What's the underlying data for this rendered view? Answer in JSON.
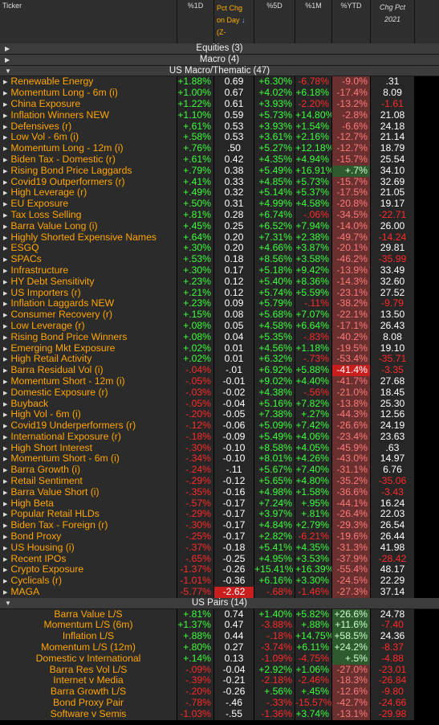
{
  "header": {
    "ticker": "Ticker",
    "d1": "%1D",
    "pct_chg": [
      "Pct Chg",
      "on Day",
      "(Z-"
    ],
    "sort_arrow": "↓",
    "d5": "%5D",
    "m1": "%1M",
    "ytd": "%YTD",
    "chg_pct": [
      "Chg Pct",
      "2021"
    ]
  },
  "groups": {
    "equities": "Equities (3)",
    "macro": "Macro (4)",
    "us_macro": "US Macro/Thematic (47)",
    "us_pairs": "US Pairs (14)"
  },
  "us_macro_rows": [
    {
      "name": "Renewable Energy",
      "d1": "+1.88%",
      "z": "0.69",
      "d5": "+6.30%",
      "m1": "-6.78%",
      "ytd": "-9.0%",
      "chg": ".31"
    },
    {
      "name": "Momentum Long - 6m (i)",
      "d1": "+1.00%",
      "z": "0.67",
      "d5": "+4.02%",
      "m1": "+6.18%",
      "ytd": "-17.4%",
      "chg": "8.09"
    },
    {
      "name": "China Exposure",
      "d1": "+1.22%",
      "z": "0.61",
      "d5": "+3.93%",
      "m1": "-2.20%",
      "ytd": "-13.2%",
      "chg": "-1.61"
    },
    {
      "name": "Inflation Winners NEW",
      "d1": "+1.10%",
      "z": "0.59",
      "d5": "+5.73%",
      "m1": "+14.80%",
      "ytd": "-2.8%",
      "chg": "21.08"
    },
    {
      "name": "Defensives (r)",
      "d1": "+.61%",
      "z": "0.53",
      "d5": "+3.93%",
      "m1": "+1.54%",
      "ytd": "-6.6%",
      "chg": "24.18"
    },
    {
      "name": "Low Vol - 6m (i)",
      "d1": "+.58%",
      "z": "0.53",
      "d5": "+3.61%",
      "m1": "+2.16%",
      "ytd": "-12.7%",
      "chg": "21.14"
    },
    {
      "name": "Momentum Long - 12m (i)",
      "d1": "+.76%",
      "z": ".50",
      "d5": "+5.27%",
      "m1": "+12.18%",
      "ytd": "-12.7%",
      "chg": "18.79"
    },
    {
      "name": "Biden Tax - Domestic (r)",
      "d1": "+.61%",
      "z": "0.42",
      "d5": "+4.35%",
      "m1": "+4.94%",
      "ytd": "-15.7%",
      "chg": "25.54"
    },
    {
      "name": "Rising Bond Price Laggards",
      "d1": "+.79%",
      "z": "0.38",
      "d5": "+5.49%",
      "m1": "+16.91%",
      "ytd": "+.7%",
      "chg": "34.10"
    },
    {
      "name": "Covid19 Outperformers (r)",
      "d1": "+.41%",
      "z": "0.33",
      "d5": "+4.85%",
      "m1": "+5.73%",
      "ytd": "-15.7%",
      "chg": "32.69"
    },
    {
      "name": "High Leverage (r)",
      "d1": "+.49%",
      "z": "0.32",
      "d5": "+5.14%",
      "m1": "+5.37%",
      "ytd": "-17.5%",
      "chg": "21.05"
    },
    {
      "name": "EU Exposure",
      "d1": "+.50%",
      "z": "0.31",
      "d5": "+4.99%",
      "m1": "+4.58%",
      "ytd": "-20.8%",
      "chg": "19.17"
    },
    {
      "name": "Tax Loss Selling",
      "d1": "+.81%",
      "z": "0.28",
      "d5": "+6.74%",
      "m1": "-.06%",
      "ytd": "-34.5%",
      "chg": "-22.71"
    },
    {
      "name": "Barra Value Long (i)",
      "d1": "+.45%",
      "z": "0.25",
      "d5": "+6.52%",
      "m1": "+7.94%",
      "ytd": "-14.0%",
      "chg": "26.00"
    },
    {
      "name": "Highly Shorted Expensive Names",
      "d1": "+.64%",
      "z": "0.20",
      "d5": "+7.31%",
      "m1": "+2.38%",
      "ytd": "-49.7%",
      "chg": "-14.24"
    },
    {
      "name": "ESGQ",
      "d1": "+.30%",
      "z": "0.20",
      "d5": "+4.66%",
      "m1": "+3.87%",
      "ytd": "-20.1%",
      "chg": "29.81"
    },
    {
      "name": "SPACs",
      "d1": "+.53%",
      "z": "0.18",
      "d5": "+8.56%",
      "m1": "+3.58%",
      "ytd": "-46.2%",
      "chg": "-35.99"
    },
    {
      "name": "Infrastructure",
      "d1": "+.30%",
      "z": "0.17",
      "d5": "+5.18%",
      "m1": "+9.42%",
      "ytd": "-13.9%",
      "chg": "33.49"
    },
    {
      "name": "HY Debt Sensitivity",
      "d1": "+.23%",
      "z": "0.12",
      "d5": "+5.40%",
      "m1": "+8.36%",
      "ytd": "-14.3%",
      "chg": "32.60"
    },
    {
      "name": "US Importers (r)",
      "d1": "+.21%",
      "z": "0.12",
      "d5": "+5.74%",
      "m1": "+5.59%",
      "ytd": "-23.1%",
      "chg": "27.52"
    },
    {
      "name": "Inflation Laggards NEW",
      "d1": "+.23%",
      "z": "0.09",
      "d5": "+5.79%",
      "m1": "-.11%",
      "ytd": "-38.2%",
      "chg": "-9.79"
    },
    {
      "name": "Consumer Recovery (r)",
      "d1": "+.15%",
      "z": "0.08",
      "d5": "+5.68%",
      "m1": "+7.07%",
      "ytd": "-22.1%",
      "chg": "13.50"
    },
    {
      "name": "Low Leverage (r)",
      "d1": "+.08%",
      "z": "0.05",
      "d5": "+4.58%",
      "m1": "+6.64%",
      "ytd": "-17.1%",
      "chg": "26.43"
    },
    {
      "name": "Rising Bond Price Winners",
      "d1": "+.08%",
      "z": "0.04",
      "d5": "+5.35%",
      "m1": "-.83%",
      "ytd": "-40.2%",
      "chg": "8.08"
    },
    {
      "name": "Emerging Mkt Exposure",
      "d1": "+.02%",
      "z": "0.01",
      "d5": "+4.56%",
      "m1": "+1.18%",
      "ytd": "-19.5%",
      "chg": "19.10"
    },
    {
      "name": "High Retail Activity",
      "d1": "+.02%",
      "z": "0.01",
      "d5": "+6.32%",
      "m1": "-.73%",
      "ytd": "-53.4%",
      "chg": "-35.71"
    },
    {
      "name": "Barra Residual Vol (i)",
      "d1": "-.04%",
      "z": "-.01",
      "d5": "+6.92%",
      "m1": "+5.88%",
      "ytd": "-41.4%",
      "chg": "-3.35",
      "hl": true
    },
    {
      "name": "Momentum Short - 12m (i)",
      "d1": "-.05%",
      "z": "-0.01",
      "d5": "+9.02%",
      "m1": "+4.40%",
      "ytd": "-41.7%",
      "chg": "27.68"
    },
    {
      "name": "Domestic Exposure (r)",
      "d1": "-.03%",
      "z": "-0.02",
      "d5": "+4.38%",
      "m1": "-.56%",
      "ytd": "-21.0%",
      "chg": "18.45"
    },
    {
      "name": "Buyback",
      "d1": "-.05%",
      "z": "-0.04",
      "d5": "+5.16%",
      "m1": "+7.82%",
      "ytd": "-13.8%",
      "chg": "25.30"
    },
    {
      "name": "High Vol - 6m (i)",
      "d1": "-.20%",
      "z": "-0.05",
      "d5": "+7.38%",
      "m1": "+.27%",
      "ytd": "-44.3%",
      "chg": "12.56"
    },
    {
      "name": "Covid19 Underperformers (r)",
      "d1": "-.12%",
      "z": "-0.06",
      "d5": "+5.09%",
      "m1": "+7.42%",
      "ytd": "-26.6%",
      "chg": "24.19"
    },
    {
      "name": "International Exposure (r)",
      "d1": "-.18%",
      "z": "-0.09",
      "d5": "+5.49%",
      "m1": "+4.06%",
      "ytd": "-23.4%",
      "chg": "23.63"
    },
    {
      "name": "High Short Interest",
      "d1": "-.30%",
      "z": "-0.10",
      "d5": "+8.58%",
      "m1": "+4.05%",
      "ytd": "-45.9%",
      "chg": ".63"
    },
    {
      "name": "Momentum Short - 6m (i)",
      "d1": "-.34%",
      "z": "-0.10",
      "d5": "+8.01%",
      "m1": "+4.26%",
      "ytd": "-43.0%",
      "chg": "14.97"
    },
    {
      "name": "Barra Growth (i)",
      "d1": "-.24%",
      "z": "-.11",
      "d5": "+5.67%",
      "m1": "+7.40%",
      "ytd": "-31.1%",
      "chg": "6.76"
    },
    {
      "name": "Retail Sentiment",
      "d1": "-.29%",
      "z": "-0.12",
      "d5": "+5.65%",
      "m1": "+4.80%",
      "ytd": "-35.2%",
      "chg": "-35.06"
    },
    {
      "name": "Barra Value Short (i)",
      "d1": "-.35%",
      "z": "-0.16",
      "d5": "+4.98%",
      "m1": "+1.58%",
      "ytd": "-36.6%",
      "chg": "-3.43"
    },
    {
      "name": "High Beta",
      "d1": "-.57%",
      "z": "-0.17",
      "d5": "+7.24%",
      "m1": "+.95%",
      "ytd": "-44.1%",
      "chg": "16.24"
    },
    {
      "name": "Popular Retail HLDs",
      "d1": "-.29%",
      "z": "-0.17",
      "d5": "+3.97%",
      "m1": "+.81%",
      "ytd": "-26.4%",
      "chg": "22.03"
    },
    {
      "name": "Biden Tax - Foreign (r)",
      "d1": "-.30%",
      "z": "-0.17",
      "d5": "+4.84%",
      "m1": "+2.79%",
      "ytd": "-29.3%",
      "chg": "26.54"
    },
    {
      "name": "Bond Proxy",
      "d1": "-.25%",
      "z": "-0.17",
      "d5": "+2.82%",
      "m1": "-6.21%",
      "ytd": "-19.6%",
      "chg": "26.44"
    },
    {
      "name": "US Housing (i)",
      "d1": "-.37%",
      "z": "-0.18",
      "d5": "+5.41%",
      "m1": "+4.35%",
      "ytd": "-31.3%",
      "chg": "41.98"
    },
    {
      "name": "Recent IPOs",
      "d1": "-.65%",
      "z": "-0.25",
      "d5": "+4.95%",
      "m1": "+3.53%",
      "ytd": "-37.9%",
      "chg": "-28.42"
    },
    {
      "name": "Crypto Exposure",
      "d1": "-1.37%",
      "z": "-0.26",
      "d5": "+15.41%",
      "m1": "+16.39%",
      "ytd": "-55.4%",
      "chg": "48.17"
    },
    {
      "name": "Cyclicals (r)",
      "d1": "-1.01%",
      "z": "-0.36",
      "d5": "+6.16%",
      "m1": "+3.30%",
      "ytd": "-24.5%",
      "chg": "22.29"
    },
    {
      "name": "MAGA",
      "d1": "-5.77%",
      "z": "-2.62",
      "d5": "-.68%",
      "m1": "-1.46%",
      "ytd": "-27.3%",
      "chg": "37.14",
      "zhl": true
    }
  ],
  "us_pairs_rows": [
    {
      "name": "Barra Value L/S",
      "d1": "+.81%",
      "z": "0.74",
      "d5": "+1.40%",
      "m1": "+5.82%",
      "ytd": "+26.6%",
      "chg": "24.78"
    },
    {
      "name": "Momentum L/S (6m)",
      "d1": "+1.37%",
      "z": "0.47",
      "d5": "-3.88%",
      "m1": "+.88%",
      "ytd": "+11.6%",
      "chg": "-7.40"
    },
    {
      "name": "Inflation L/S",
      "d1": "+.88%",
      "z": "0.44",
      "d5": "-.18%",
      "m1": "+14.75%",
      "ytd": "+58.5%",
      "chg": "24.36"
    },
    {
      "name": "Momentum L/S (12m)",
      "d1": "+.80%",
      "z": "0.27",
      "d5": "-3.74%",
      "m1": "+6.11%",
      "ytd": "+24.2%",
      "chg": "-8.37"
    },
    {
      "name": "Domestic v International",
      "d1": "+.14%",
      "z": "0.13",
      "d5": "-1.09%",
      "m1": "-4.75%",
      "ytd": "+.5%",
      "chg": "-4.88"
    },
    {
      "name": "Barra Res Vol L/S",
      "d1": "-.09%",
      "z": "-0.04",
      "d5": "+2.92%",
      "m1": "+1.06%",
      "ytd": "-27.0%",
      "chg": "-23.01"
    },
    {
      "name": "Internet v Media",
      "d1": "-.39%",
      "z": "-0.21",
      "d5": "-2.18%",
      "m1": "-2.46%",
      "ytd": "-18.3%",
      "chg": "-26.84"
    },
    {
      "name": "Barra Growth L/S",
      "d1": "-.20%",
      "z": "-0.26",
      "d5": "+.56%",
      "m1": "+.45%",
      "ytd": "-12.6%",
      "chg": "-9.80"
    },
    {
      "name": "Bond Proxy Pair",
      "d1": "-.78%",
      "z": "-.46",
      "d5": "-.33%",
      "m1": "-15.57%",
      "ytd": "-42.7%",
      "chg": "-24.66"
    },
    {
      "name": "Software v Semis",
      "d1": "-1.03%",
      "z": "-.55",
      "d5": "-1.36%",
      "m1": "+3.74%",
      "ytd": "-13.1%",
      "chg": "-29.98"
    }
  ],
  "colors": {
    "positive": "#3cff3c",
    "negative": "#ff2a2a",
    "name": "#ffa500",
    "ytd_positive_bg": "#2f5a2f",
    "ytd_negative_bg": "#6a2f2f",
    "highlight": "#c81e1e"
  }
}
